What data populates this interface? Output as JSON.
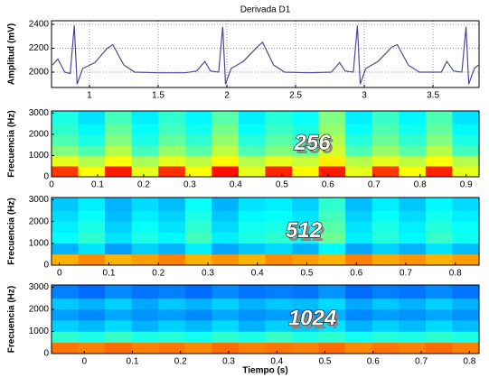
{
  "chart_data": [
    {
      "type": "line",
      "title": "Derivada D1",
      "ylabel": "Amplitud (mV)",
      "color": "#4a4a9a",
      "grid": true,
      "x": [
        0.73,
        0.77,
        0.82,
        0.86,
        0.89,
        0.91,
        0.95,
        1.04,
        1.13,
        1.17,
        1.25,
        1.33,
        1.5,
        1.7,
        1.78,
        1.84,
        1.88,
        1.94,
        1.97,
        1.99,
        2.03,
        2.12,
        2.22,
        2.26,
        2.34,
        2.42,
        2.6,
        2.76,
        2.82,
        2.86,
        2.92,
        2.95,
        2.97,
        3.01,
        3.1,
        3.2,
        3.24,
        3.32,
        3.4,
        3.56,
        3.6,
        3.65,
        3.71,
        3.74,
        3.76,
        3.8,
        3.83
      ],
      "values": [
        2060,
        2110,
        2000,
        1990,
        2390,
        1900,
        2030,
        2080,
        2200,
        2230,
        2060,
        2000,
        1995,
        1995,
        2010,
        2090,
        2010,
        2000,
        2380,
        1900,
        2030,
        2090,
        2210,
        2250,
        2060,
        2000,
        1995,
        2000,
        2080,
        2010,
        2000,
        2390,
        1900,
        2030,
        2090,
        2210,
        2230,
        2060,
        2000,
        2000,
        2090,
        2010,
        2000,
        2380,
        1900,
        2030,
        2060
      ],
      "xlim": [
        0.724,
        3.835
      ],
      "xticks": [
        1,
        1.5,
        2,
        2.5,
        3,
        3.5
      ],
      "ylim": [
        1872,
        2430
      ],
      "yticks": [
        2000,
        2200,
        2400
      ]
    },
    {
      "type": "heatmap",
      "ylabel": "Frecuencia (Hz)",
      "annotation": "256",
      "colormap": "jet",
      "xbins": [
        0,
        0.058,
        0.116,
        0.174,
        0.232,
        0.29,
        0.348,
        0.406,
        0.464,
        0.522,
        0.58,
        0.638,
        0.696,
        0.754,
        0.812,
        0.87,
        0.928
      ],
      "ybins": [
        0,
        500,
        1000,
        1500,
        2000,
        2500,
        3100
      ],
      "values": [
        [
          0.82,
          0.62,
          0.85,
          0.6,
          0.83,
          0.62,
          0.86,
          0.6,
          0.84,
          0.63,
          0.85,
          0.6,
          0.82,
          0.62,
          0.84,
          0.6
        ],
        [
          0.6,
          0.55,
          0.62,
          0.54,
          0.6,
          0.56,
          0.63,
          0.55,
          0.6,
          0.57,
          0.64,
          0.55,
          0.6,
          0.56,
          0.62,
          0.55
        ],
        [
          0.5,
          0.45,
          0.55,
          0.44,
          0.52,
          0.46,
          0.56,
          0.45,
          0.5,
          0.47,
          0.58,
          0.45,
          0.52,
          0.46,
          0.55,
          0.44
        ],
        [
          0.45,
          0.4,
          0.5,
          0.4,
          0.47,
          0.42,
          0.52,
          0.41,
          0.46,
          0.43,
          0.55,
          0.41,
          0.48,
          0.42,
          0.5,
          0.4
        ],
        [
          0.42,
          0.37,
          0.47,
          0.38,
          0.44,
          0.39,
          0.49,
          0.38,
          0.43,
          0.4,
          0.52,
          0.38,
          0.45,
          0.39,
          0.47,
          0.37
        ],
        [
          0.4,
          0.35,
          0.44,
          0.36,
          0.42,
          0.37,
          0.46,
          0.36,
          0.41,
          0.38,
          0.5,
          0.36,
          0.43,
          0.37,
          0.45,
          0.35
        ]
      ],
      "xlim": [
        0,
        0.928
      ],
      "xticks": [
        0,
        0.1,
        0.2,
        0.3,
        0.4,
        0.5,
        0.6,
        0.7,
        0.8,
        0.9
      ],
      "ylim": [
        0,
        3100
      ],
      "yticks": [
        0,
        1000,
        2000,
        3000
      ]
    },
    {
      "type": "heatmap",
      "ylabel": "Frecuencia (Hz)",
      "annotation": "512",
      "colormap": "jet",
      "xbins": [
        -0.016,
        0.038,
        0.092,
        0.146,
        0.2,
        0.254,
        0.308,
        0.362,
        0.416,
        0.47,
        0.524,
        0.578,
        0.632,
        0.686,
        0.74,
        0.794,
        0.848
      ],
      "ybins": [
        0,
        500,
        1000,
        1500,
        2000,
        2500,
        3100
      ],
      "values": [
        [
          0.7,
          0.74,
          0.7,
          0.72,
          0.75,
          0.7,
          0.73,
          0.7,
          0.74,
          0.72,
          0.7,
          0.75,
          0.71,
          0.73,
          0.7,
          0.72
        ],
        [
          0.3,
          0.35,
          0.28,
          0.33,
          0.3,
          0.36,
          0.29,
          0.32,
          0.34,
          0.3,
          0.37,
          0.29,
          0.33,
          0.3,
          0.35,
          0.31
        ],
        [
          0.38,
          0.42,
          0.35,
          0.4,
          0.37,
          0.44,
          0.36,
          0.4,
          0.42,
          0.38,
          0.48,
          0.36,
          0.41,
          0.37,
          0.43,
          0.39
        ],
        [
          0.36,
          0.4,
          0.33,
          0.38,
          0.35,
          0.42,
          0.34,
          0.39,
          0.4,
          0.37,
          0.46,
          0.35,
          0.4,
          0.36,
          0.41,
          0.38
        ],
        [
          0.34,
          0.38,
          0.31,
          0.36,
          0.33,
          0.4,
          0.32,
          0.37,
          0.38,
          0.35,
          0.44,
          0.33,
          0.38,
          0.34,
          0.39,
          0.36
        ],
        [
          0.32,
          0.36,
          0.3,
          0.34,
          0.31,
          0.38,
          0.3,
          0.35,
          0.36,
          0.33,
          0.42,
          0.31,
          0.36,
          0.32,
          0.37,
          0.34
        ]
      ],
      "xlim": [
        -0.016,
        0.848
      ],
      "xticks": [
        0,
        0.1,
        0.2,
        0.3,
        0.4,
        0.5,
        0.6,
        0.7,
        0.8
      ],
      "ylim": [
        0,
        3100
      ],
      "yticks": [
        0,
        1000,
        2000,
        3000
      ]
    },
    {
      "type": "heatmap",
      "ylabel": "Frecuencia (Hz)",
      "xlabel": "Tiempo (s)",
      "annotation": "1024",
      "colormap": "jet",
      "xbins": [
        -0.068,
        -0.0125,
        0.043,
        0.0985,
        0.154,
        0.2095,
        0.265,
        0.3205,
        0.376,
        0.4315,
        0.487,
        0.5425,
        0.598,
        0.6535,
        0.709,
        0.7645,
        0.82
      ],
      "ybins": [
        0,
        500,
        1000,
        1500,
        2000,
        2500,
        3100
      ],
      "values": [
        [
          0.76,
          0.75,
          0.77,
          0.75,
          0.76,
          0.74,
          0.77,
          0.75,
          0.76,
          0.75,
          0.77,
          0.74,
          0.76,
          0.75,
          0.77,
          0.75
        ],
        [
          0.42,
          0.4,
          0.43,
          0.4,
          0.41,
          0.39,
          0.42,
          0.4,
          0.43,
          0.4,
          0.42,
          0.39,
          0.41,
          0.4,
          0.42,
          0.4
        ],
        [
          0.33,
          0.31,
          0.34,
          0.3,
          0.33,
          0.31,
          0.34,
          0.3,
          0.33,
          0.32,
          0.35,
          0.3,
          0.33,
          0.31,
          0.34,
          0.31
        ],
        [
          0.28,
          0.26,
          0.29,
          0.27,
          0.28,
          0.26,
          0.29,
          0.27,
          0.28,
          0.27,
          0.3,
          0.26,
          0.28,
          0.27,
          0.29,
          0.27
        ],
        [
          0.32,
          0.3,
          0.33,
          0.29,
          0.32,
          0.3,
          0.33,
          0.3,
          0.32,
          0.31,
          0.34,
          0.29,
          0.32,
          0.3,
          0.33,
          0.3
        ],
        [
          0.25,
          0.23,
          0.26,
          0.24,
          0.25,
          0.23,
          0.26,
          0.24,
          0.25,
          0.24,
          0.27,
          0.23,
          0.25,
          0.24,
          0.26,
          0.24
        ]
      ],
      "xlim": [
        -0.068,
        0.82
      ],
      "xticks": [
        0,
        0.1,
        0.2,
        0.3,
        0.4,
        0.5,
        0.6,
        0.7,
        0.8
      ],
      "ylim": [
        0,
        3100
      ],
      "yticks": [
        0,
        1000,
        2000,
        3000
      ]
    }
  ]
}
